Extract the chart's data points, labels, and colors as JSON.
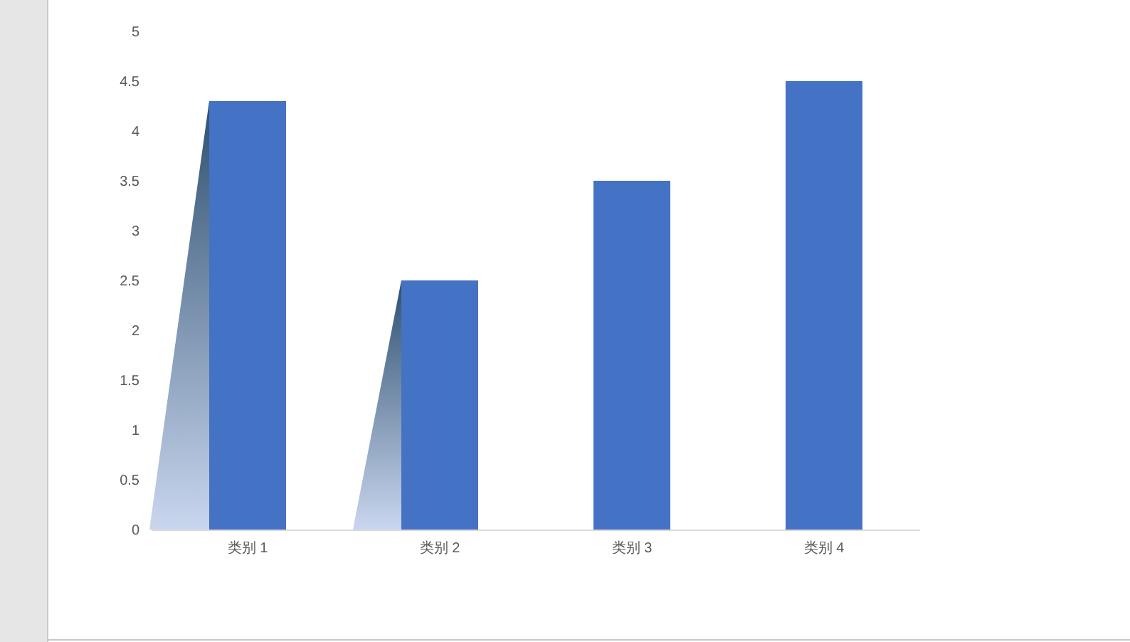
{
  "chart_data": {
    "type": "bar",
    "categories": [
      "类别 1",
      "类别 2",
      "类别 3",
      "类别 4"
    ],
    "values": [
      4.3,
      2.5,
      3.5,
      4.5
    ],
    "color": "#4472c4",
    "ylim": [
      0,
      5
    ],
    "yticks": [
      0,
      0.5,
      1,
      1.5,
      2,
      2.5,
      3,
      3.5,
      4,
      4.5,
      5
    ],
    "grid": false
  }
}
